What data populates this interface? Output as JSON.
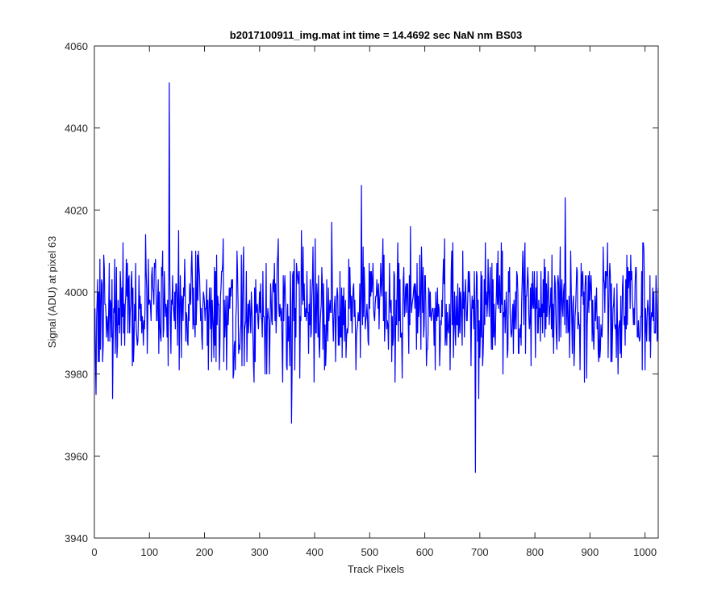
{
  "colors": {
    "background": "#ffffff",
    "axes": "#262626",
    "series": "#0000ff"
  },
  "chart_data": {
    "type": "line",
    "title": "b2017100911_img.mat int time = 14.4692 sec  NaN nm BS03",
    "xlabel": "Track Pixels",
    "ylabel": "Signal (ADU) at pixel 63",
    "xlim": [
      0,
      1024
    ],
    "ylim": [
      3940,
      4060
    ],
    "xticks": [
      0,
      100,
      200,
      300,
      400,
      500,
      600,
      700,
      800,
      900,
      1000
    ],
    "yticks": [
      3940,
      3960,
      3980,
      4000,
      4020,
      4040,
      4060
    ],
    "xtick_labels": [
      "0",
      "100",
      "200",
      "300",
      "400",
      "500",
      "600",
      "700",
      "800",
      "900",
      "1000"
    ],
    "ytick_labels": [
      "3940",
      "3960",
      "3980",
      "4000",
      "4020",
      "4040",
      "4060"
    ],
    "grid": false,
    "legend": "none",
    "series": [
      {
        "noise_level_baseline": 3996,
        "noise_range_typical": [
          3978,
          4017
        ],
        "x_start": 1,
        "x_end": 1024,
        "spikes": [
          {
            "x": 3,
            "y": 3975
          },
          {
            "x": 33,
            "y": 3974
          },
          {
            "x": 136,
            "y": 4051
          },
          {
            "x": 358,
            "y": 3968
          },
          {
            "x": 485,
            "y": 4026
          },
          {
            "x": 692,
            "y": 3956
          },
          {
            "x": 698,
            "y": 3974
          },
          {
            "x": 855,
            "y": 4023
          }
        ]
      }
    ]
  }
}
